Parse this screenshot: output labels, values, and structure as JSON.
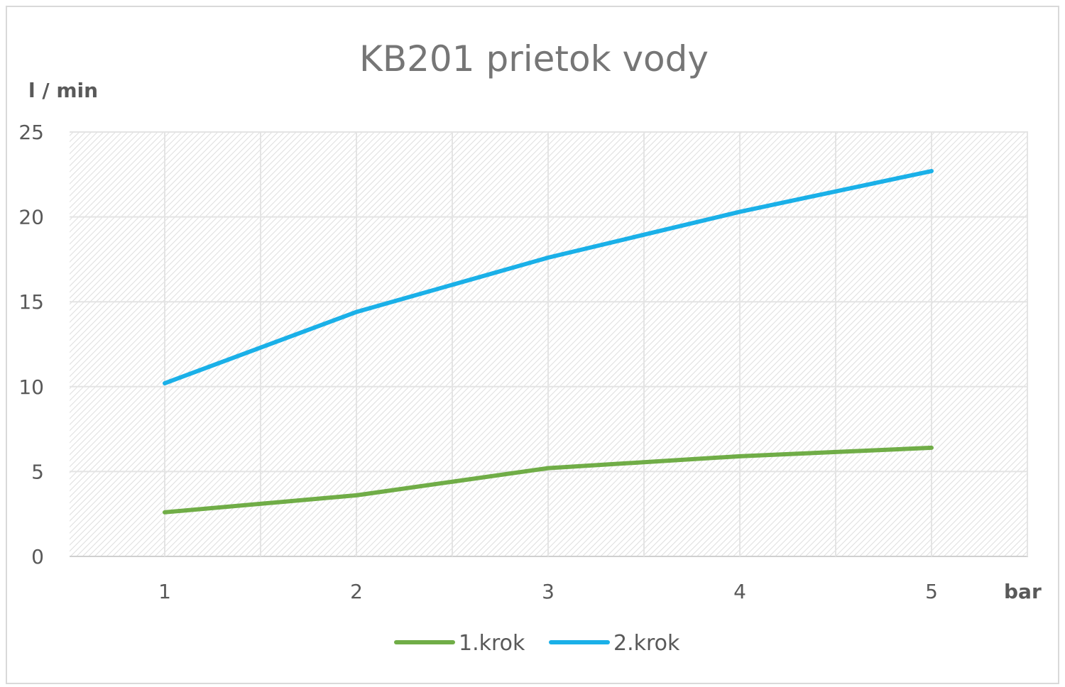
{
  "chart_data": {
    "type": "line",
    "title": "KB201 prietok vody",
    "ylabel": "l / min",
    "xlabel": "bar",
    "categories": [
      "1",
      "2",
      "3",
      "4",
      "5"
    ],
    "ylim": [
      0,
      25
    ],
    "yticks": [
      "0",
      "5",
      "10",
      "15",
      "20",
      "25"
    ],
    "grid": true,
    "legend_position": "bottom",
    "series": [
      {
        "name": "1.krok",
        "color": "#70ad47",
        "values": [
          2.6,
          3.6,
          5.2,
          5.9,
          6.4
        ]
      },
      {
        "name": "2.krok",
        "color": "#1ab0e8",
        "values": [
          10.2,
          14.4,
          17.6,
          20.3,
          22.7
        ]
      }
    ]
  }
}
